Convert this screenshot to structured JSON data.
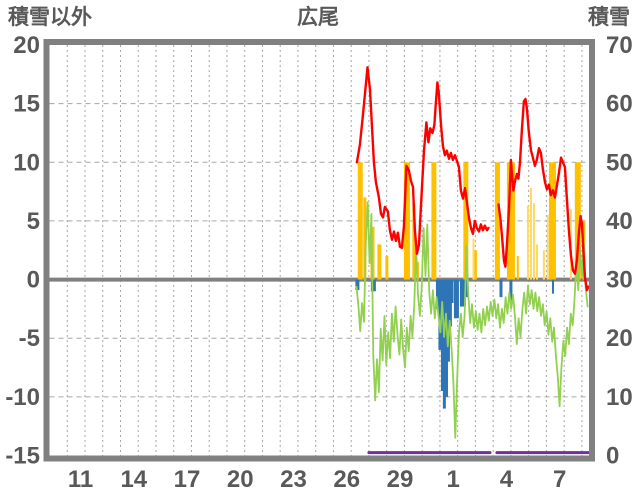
{
  "header": {
    "left_axis_title": "積雪以外",
    "chart_title": "広尾",
    "right_axis_title": "積雪"
  },
  "chart_data": {
    "type": "line",
    "title": "広尾",
    "subtitle": "",
    "legend": "none",
    "grid": "dashed, vertical per day, horizontal per 5 units",
    "x_axis": {
      "unit": "day-slot (0 = window start, gridline at each integer day, window spans ~30.4 days)",
      "tick_labels": [
        "11",
        "14",
        "17",
        "20",
        "23",
        "26",
        "29",
        "1",
        "4",
        "7"
      ],
      "tick_slots": [
        1.75,
        4.75,
        7.75,
        10.75,
        13.75,
        16.75,
        19.75,
        22.75,
        25.75,
        28.75
      ],
      "range": [
        0,
        30.4
      ]
    },
    "left_axis": {
      "title": "積雪以外",
      "min": -15,
      "max": 20,
      "ticks": [
        20,
        15,
        10,
        5,
        0,
        -5,
        -10,
        -15
      ]
    },
    "right_axis": {
      "title": "積雪",
      "min": 0,
      "max": 70,
      "ticks": [
        70,
        60,
        50,
        40,
        30,
        20,
        10,
        0
      ]
    },
    "colors": {
      "red_line": "#FF0000",
      "green_line": "#92D050",
      "orange_bars": "#FFC000",
      "yellow_bars": "#FFD966",
      "blue_bars": "#2E75B6",
      "purple_line": "#7030A0",
      "frame": "#808080",
      "zero_line": "#808080",
      "grid": "#a6a6a6",
      "text": "#595959"
    },
    "series": [
      {
        "name": "red-line",
        "type": "line",
        "axis": "left",
        "color": "#FF0000",
        "width": 2.4,
        "segments": [
          [
            [
              17.32,
              10.0
            ],
            [
              17.49,
              11.5
            ],
            [
              17.66,
              14.0
            ],
            [
              17.92,
              18.1
            ],
            [
              18.06,
              16.2
            ],
            [
              18.17,
              13.0
            ],
            [
              18.28,
              10.0
            ],
            [
              18.39,
              8.3
            ],
            [
              18.56,
              7.0
            ],
            [
              18.68,
              5.6
            ],
            [
              18.79,
              5.3
            ],
            [
              18.9,
              6.2
            ],
            [
              19.07,
              5.8
            ],
            [
              19.18,
              4.2
            ],
            [
              19.3,
              3.4
            ],
            [
              19.41,
              4.1
            ],
            [
              19.52,
              3.3
            ],
            [
              19.63,
              4.0
            ],
            [
              19.75,
              2.8
            ],
            [
              19.86,
              2.7
            ],
            [
              19.97,
              4.5
            ],
            [
              20.11,
              9.7
            ],
            [
              20.25,
              9.3
            ],
            [
              20.37,
              8.4
            ],
            [
              20.48,
              7.9
            ],
            [
              20.59,
              4.2
            ],
            [
              20.7,
              2.2
            ],
            [
              20.82,
              3.0
            ],
            [
              20.93,
              6.2
            ],
            [
              21.1,
              11.0
            ],
            [
              21.24,
              13.4
            ],
            [
              21.35,
              11.7
            ],
            [
              21.46,
              12.9
            ],
            [
              21.58,
              12.5
            ],
            [
              21.69,
              13.2
            ],
            [
              21.77,
              15.0
            ],
            [
              21.86,
              16.8
            ],
            [
              21.94,
              15.8
            ],
            [
              22.06,
              13.2
            ],
            [
              22.17,
              11.4
            ],
            [
              22.28,
              10.6
            ],
            [
              22.39,
              11.0
            ],
            [
              22.51,
              10.3
            ],
            [
              22.62,
              10.8
            ],
            [
              22.73,
              10.2
            ],
            [
              22.85,
              10.6
            ],
            [
              22.96,
              10.1
            ],
            [
              23.07,
              9.6
            ],
            [
              23.18,
              7.6
            ],
            [
              23.3,
              6.9
            ],
            [
              23.41,
              7.8
            ],
            [
              23.52,
              6.6
            ],
            [
              23.63,
              5.3
            ],
            [
              23.75,
              4.4
            ],
            [
              23.86,
              3.9
            ],
            [
              23.97,
              5.0
            ],
            [
              24.08,
              4.4
            ],
            [
              24.2,
              4.1
            ],
            [
              24.31,
              4.7
            ],
            [
              24.42,
              4.2
            ],
            [
              24.53,
              4.6
            ],
            [
              24.65,
              4.2
            ],
            [
              24.73,
              4.4
            ]
          ],
          [
            [
              25.3,
              6.4
            ],
            [
              25.41,
              5.2
            ],
            [
              25.49,
              3.8
            ],
            [
              25.61,
              1.6
            ],
            [
              25.69,
              1.1
            ],
            [
              25.77,
              2.8
            ],
            [
              25.89,
              6.0
            ],
            [
              26.0,
              10.2
            ],
            [
              26.08,
              8.6
            ],
            [
              26.14,
              7.6
            ],
            [
              26.23,
              8.4
            ],
            [
              26.34,
              9.0
            ],
            [
              26.42,
              8.6
            ],
            [
              26.51,
              10.0
            ],
            [
              26.62,
              12.8
            ],
            [
              26.73,
              15.2
            ],
            [
              26.82,
              15.4
            ],
            [
              26.9,
              14.6
            ],
            [
              27.01,
              12.6
            ],
            [
              27.13,
              11.0
            ],
            [
              27.24,
              10.4
            ],
            [
              27.35,
              9.7
            ],
            [
              27.46,
              10.2
            ],
            [
              27.58,
              11.2
            ],
            [
              27.69,
              10.8
            ],
            [
              27.8,
              9.4
            ],
            [
              27.92,
              8.3
            ],
            [
              28.03,
              7.7
            ],
            [
              28.14,
              8.1
            ],
            [
              28.25,
              7.2
            ],
            [
              28.37,
              7.6
            ],
            [
              28.48,
              7.0
            ],
            [
              28.59,
              8.0
            ],
            [
              28.7,
              9.0
            ],
            [
              28.82,
              10.4
            ],
            [
              28.93,
              10.0
            ],
            [
              29.04,
              9.6
            ],
            [
              29.15,
              7.0
            ],
            [
              29.27,
              4.2
            ],
            [
              29.38,
              2.1
            ],
            [
              29.49,
              0.8
            ],
            [
              29.61,
              0.5
            ],
            [
              29.72,
              1.6
            ],
            [
              29.83,
              4.0
            ],
            [
              29.92,
              5.4
            ],
            [
              30.0,
              4.8
            ],
            [
              30.08,
              2.6
            ],
            [
              30.17,
              0.2
            ],
            [
              30.28,
              -0.9
            ],
            [
              30.37,
              -0.6
            ]
          ]
        ]
      },
      {
        "name": "green-line",
        "type": "line",
        "axis": "left",
        "color": "#92D050",
        "width": 1.8,
        "t_start": 17.3,
        "t_step": 0.105,
        "values": [
          -0.6,
          -2.2,
          -4.4,
          -2.0,
          -3.6,
          3.2,
          6.6,
          1.4,
          5.6,
          -6.5,
          -10.3,
          -6.8,
          -9.6,
          -4.2,
          -6.9,
          -3.1,
          -7.3,
          -4.5,
          -6.7,
          -2.9,
          -5.3,
          -2.3,
          -4.7,
          -6.4,
          -3.4,
          -5.9,
          -7.5,
          -4.1,
          -6.1,
          -3.1,
          -4.9,
          -2.1,
          2.7,
          -1.3,
          -3.1,
          -0.7,
          4.4,
          0.3,
          4.7,
          -1.0,
          -2.9,
          -0.9,
          -3.3,
          -1.5,
          -3.1,
          -4.5,
          -1.9,
          -4.9,
          -2.9,
          -5.7,
          -3.5,
          -5.9,
          -8.8,
          -13.5,
          -8.6,
          -4.5,
          -2.9,
          -4.9,
          -3.1,
          2.9,
          -1.3,
          -3.7,
          -2.1,
          -4.1,
          -2.7,
          -4.3,
          -2.9,
          -4.5,
          -2.5,
          -3.9,
          -2.3,
          -3.5,
          -1.9,
          -3.1,
          -1.7,
          -3.3,
          -2.1,
          -4.1,
          -2.5,
          -3.7,
          -1.5,
          -2.9,
          -1.1,
          -2.5,
          -1.3,
          -3.1,
          -5.5,
          -3.3,
          -4.9,
          -2.5,
          -1.1,
          -2.9,
          -0.5,
          -2.1,
          -0.9,
          -2.5,
          -1.1,
          -2.7,
          -1.5,
          -3.1,
          -2.1,
          -3.9,
          -2.7,
          -4.7,
          -3.3,
          -5.3,
          -4.1,
          -6.5,
          -8.3,
          -10.8,
          -7.4,
          -5.2,
          -6.5,
          -4.1,
          -5.5,
          -2.9,
          -3.9,
          -1.7,
          1.5,
          -0.9,
          2.7,
          0.3,
          3.1,
          -0.7,
          -2.3
        ]
      },
      {
        "name": "orange-bars",
        "type": "bar",
        "axis": "left",
        "color": "#FFC000",
        "bars": [
          [
            17.51,
            5,
            10
          ],
          [
            17.77,
            3,
            7
          ],
          [
            18.2,
            4,
            4.5
          ],
          [
            18.59,
            4,
            3
          ],
          [
            19.01,
            3,
            2
          ],
          [
            20.14,
            6,
            10
          ],
          [
            20.53,
            3,
            6.5
          ],
          [
            20.76,
            2,
            1.5
          ],
          [
            21.66,
            5,
            10
          ],
          [
            23.46,
            5,
            10
          ],
          [
            23.97,
            4,
            2.5
          ],
          [
            25.24,
            5,
            10
          ],
          [
            26.0,
            8,
            10
          ],
          [
            26.39,
            2,
            2
          ],
          [
            28.34,
            7,
            10
          ],
          [
            29.77,
            6,
            10
          ],
          [
            30.11,
            3,
            5
          ]
        ]
      },
      {
        "name": "yellow-bars",
        "type": "bar",
        "axis": "left",
        "color": "#FFD966",
        "bars": [
          [
            23.89,
            2,
            3.5
          ],
          [
            26.96,
            2,
            6.3
          ],
          [
            27.13,
            2,
            7.8
          ],
          [
            27.3,
            2,
            6.5
          ],
          [
            27.47,
            2,
            3.0
          ],
          [
            27.86,
            2,
            2.5
          ],
          [
            28.08,
            2,
            5.5
          ],
          [
            29.38,
            2,
            6.0
          ]
        ]
      },
      {
        "name": "blue-bars",
        "type": "bar",
        "axis": "left",
        "color": "#2E75B6",
        "bars": [
          [
            17.35,
            4,
            -0.9
          ],
          [
            18.25,
            5,
            -1.0
          ],
          [
            21.86,
            3,
            -2.5
          ],
          [
            22.0,
            3,
            -6.0
          ],
          [
            22.14,
            3,
            -9.5
          ],
          [
            22.25,
            3,
            -11.0
          ],
          [
            22.37,
            3,
            -10.0
          ],
          [
            22.48,
            3,
            -7.0
          ],
          [
            22.59,
            3,
            -4.0
          ],
          [
            22.68,
            3,
            -2.0
          ],
          [
            22.93,
            5,
            -3.3
          ],
          [
            23.21,
            3,
            -2.3
          ],
          [
            23.35,
            4,
            -2.3
          ],
          [
            23.52,
            2,
            -1.5
          ],
          [
            25.44,
            3,
            -1.5
          ],
          [
            26.0,
            3,
            -1.8
          ],
          [
            28.37,
            2,
            -1.2
          ]
        ]
      },
      {
        "name": "purple-line",
        "type": "line",
        "axis": "right",
        "color": "#7030A0",
        "width": 3,
        "segments": [
          [
            [
              18.0,
              0.5
            ],
            [
              24.82,
              0.5
            ]
          ],
          [
            [
              25.21,
              0.5
            ],
            [
              30.37,
              0.5
            ]
          ]
        ]
      }
    ]
  }
}
